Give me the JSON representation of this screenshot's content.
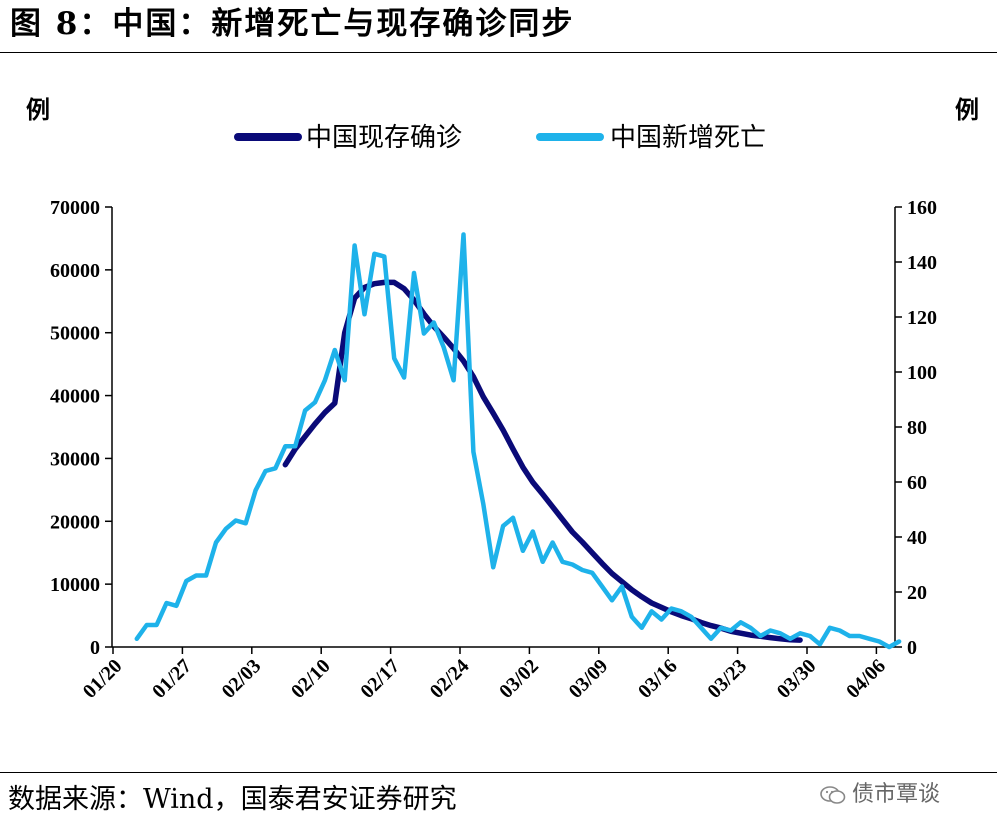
{
  "title": "图 8：中国：新增死亡与现存确诊同步",
  "source": "数据来源：Wind，国泰君安证券研究",
  "watermark": "债市覃谈",
  "chart_data": {
    "type": "line",
    "left_unit": "例",
    "right_unit": "例",
    "legend_position": "top-center",
    "grid": false,
    "x_start": "2020-01-20",
    "x_tick_labels": [
      "01/20",
      "01/27",
      "02/03",
      "02/10",
      "02/17",
      "02/24",
      "03/02",
      "03/09",
      "03/16",
      "03/23",
      "03/30",
      "04/06"
    ],
    "left_axis": {
      "min": 0,
      "max": 70000,
      "ticks": [
        0,
        10000,
        20000,
        30000,
        40000,
        50000,
        60000,
        70000
      ]
    },
    "right_axis": {
      "min": 0,
      "max": 160,
      "ticks": [
        0,
        20,
        40,
        60,
        80,
        100,
        120,
        140,
        160
      ]
    },
    "series": [
      {
        "name": "中国现存确诊",
        "axis": "left",
        "color": "#0a0a78",
        "start_date": "2020-02-06",
        "values": [
          29000,
          31500,
          33500,
          35500,
          37300,
          38800,
          50000,
          55500,
          57200,
          57800,
          58000,
          58000,
          57000,
          55200,
          53000,
          51000,
          49300,
          47500,
          45500,
          43000,
          39800,
          37200,
          34500,
          31500,
          28600,
          26200,
          24300,
          22300,
          20300,
          18300,
          16700,
          15000,
          13300,
          11700,
          10400,
          9100,
          8000,
          7000,
          6300,
          5600,
          5000,
          4500,
          3900,
          3400,
          3000,
          2500,
          2200,
          1900,
          1700,
          1500,
          1300,
          1150,
          1100
        ]
      },
      {
        "name": "中国新增死亡",
        "axis": "right",
        "color": "#1eb2ea",
        "start_date": "2020-01-22",
        "values": [
          3,
          8,
          8,
          16,
          15,
          24,
          26,
          26,
          38,
          43,
          46,
          45,
          57,
          64,
          65,
          73,
          73,
          86,
          89,
          97,
          108,
          97,
          146,
          121,
          143,
          142,
          105,
          98,
          136,
          114,
          118,
          109,
          97,
          150,
          71,
          52,
          29,
          44,
          47,
          35,
          42,
          31,
          38,
          31,
          30,
          28,
          27,
          22,
          17,
          22,
          11,
          7,
          13,
          10,
          14,
          13,
          11,
          7,
          3,
          7,
          6,
          9,
          7,
          4,
          6,
          5,
          3,
          5,
          4,
          1,
          7,
          6,
          4,
          4,
          3,
          2,
          0,
          2
        ]
      }
    ]
  }
}
